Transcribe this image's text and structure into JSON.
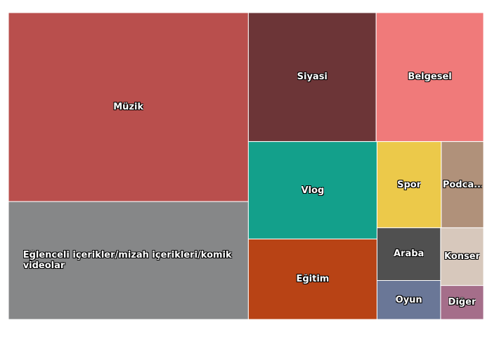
{
  "chart_data": {
    "type": "treemap",
    "categories": [
      "Müzik",
      "Eğlenceli içerikler/mizah içerikleri/komik videolar",
      "Siyasi",
      "Belgesel",
      "Vlog",
      "Eğitim",
      "Spor",
      "Podca...",
      "Araba",
      "Oyun",
      "Konser",
      "Diğer"
    ],
    "values": [
      31.1,
      19.4,
      11.3,
      9.5,
      8.6,
      7.1,
      3.8,
      2.5,
      2.3,
      1.7,
      1.7,
      1.0
    ],
    "colors": [
      "#b94f4d",
      "#868788",
      "#6c3537",
      "#f07a7a",
      "#13a08b",
      "#b84315",
      "#ecc94a",
      "#b0917a",
      "#505050",
      "#6a7797",
      "#d7c8bc",
      "#a56e8a"
    ]
  }
}
